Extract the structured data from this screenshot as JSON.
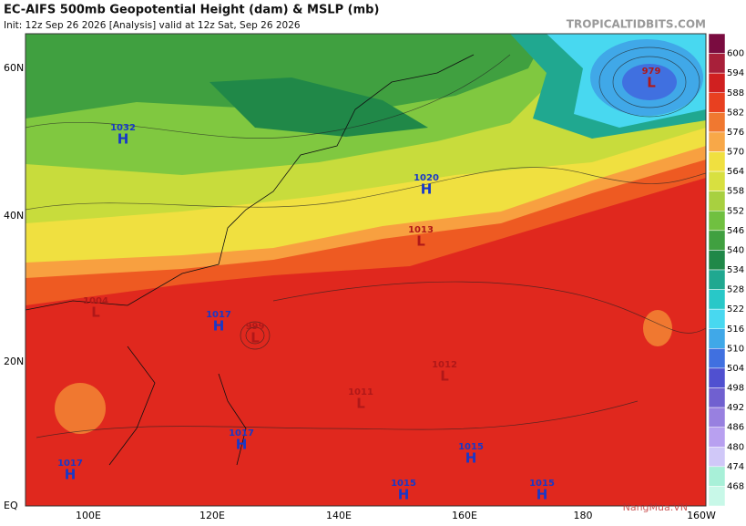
{
  "header": {
    "title": "EC-AIFS 500mb Geopotential Height (dam) & MSLP (mb)",
    "subtitle": "Init: 12z Sep 26 2026   [Analysis]   valid at 12z Sat, Sep 26 2026",
    "source": "TROPICALTIDBITS.COM"
  },
  "map": {
    "lat_labels": [
      "60N",
      "40N",
      "20N",
      "EQ"
    ],
    "lon_labels": [
      "100E",
      "120E",
      "140E",
      "160E",
      "180",
      "160W"
    ],
    "systems": [
      {
        "kind": "H",
        "value": "1032"
      },
      {
        "kind": "H",
        "value": "1020"
      },
      {
        "kind": "L",
        "value": "1013"
      },
      {
        "kind": "H",
        "value": "1017"
      },
      {
        "kind": "L",
        "value": "999"
      },
      {
        "kind": "L",
        "value": "1012"
      },
      {
        "kind": "L",
        "value": "1011"
      },
      {
        "kind": "H",
        "value": "1017"
      },
      {
        "kind": "H",
        "value": "1015"
      },
      {
        "kind": "H",
        "value": "1017"
      },
      {
        "kind": "H",
        "value": "1015"
      },
      {
        "kind": "H",
        "value": "1015"
      },
      {
        "kind": "L",
        "value": "979"
      },
      {
        "kind": "L",
        "value": "1004"
      }
    ],
    "watermark": "NangMua.VN"
  },
  "colorbar": {
    "levels": [
      "600",
      "594",
      "588",
      "582",
      "576",
      "570",
      "564",
      "558",
      "552",
      "546",
      "540",
      "534",
      "528",
      "522",
      "516",
      "510",
      "504",
      "498",
      "492",
      "486",
      "480",
      "474",
      "468"
    ],
    "colors": [
      "#7a0c40",
      "#a8203a",
      "#d02020",
      "#e84020",
      "#f07830",
      "#f8a848",
      "#f0e040",
      "#d8e040",
      "#a8d040",
      "#70c040",
      "#40a040",
      "#208848",
      "#20a890",
      "#28c8c8",
      "#48d8f0",
      "#40a8e8",
      "#4070e0",
      "#5050d0",
      "#7060d0",
      "#9880e0",
      "#b8a0f0",
      "#d0c8f8",
      "#a8f0d8",
      "#c8f8e8"
    ]
  }
}
